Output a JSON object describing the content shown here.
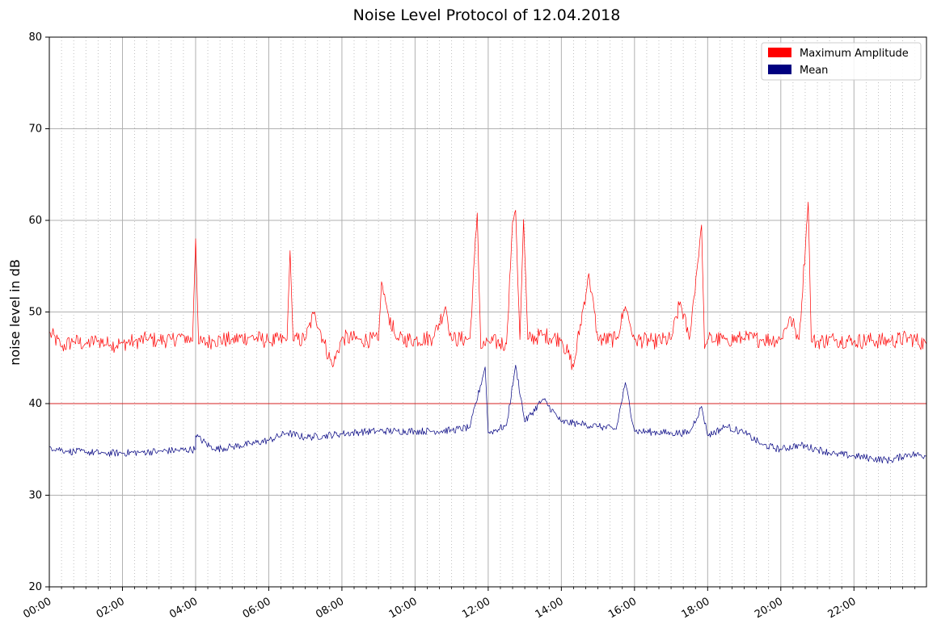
{
  "chart_data": {
    "type": "line",
    "title": "Noise Level Protocol of 12.04.2018",
    "xlabel": "",
    "ylabel": "noise level in dB",
    "xlim": [
      "00:00",
      "23:59"
    ],
    "ylim": [
      20,
      80
    ],
    "x_ticks": [
      "00:00",
      "02:00",
      "04:00",
      "06:00",
      "08:00",
      "10:00",
      "12:00",
      "14:00",
      "16:00",
      "18:00",
      "20:00",
      "22:00"
    ],
    "y_ticks": [
      20,
      30,
      40,
      50,
      60,
      70,
      80
    ],
    "grid": {
      "major": true,
      "minor_x": "dotted"
    },
    "threshold": {
      "value": 40,
      "color": "#d62020"
    },
    "legend": {
      "placement": "top-right",
      "entries": [
        {
          "label": "Maximum Amplitude",
          "color": "#ff0000"
        },
        {
          "label": "Mean",
          "color": "#000080"
        }
      ]
    },
    "series": [
      {
        "name": "Maximum Amplitude",
        "color": "#ff0000",
        "points": [
          [
            "00:00",
            47.8
          ],
          [
            "00:20",
            46.2
          ],
          [
            "00:40",
            46.8
          ],
          [
            "01:00",
            46.5
          ],
          [
            "01:20",
            46.9
          ],
          [
            "01:40",
            46.4
          ],
          [
            "02:00",
            46.6
          ],
          [
            "02:20",
            46.8
          ],
          [
            "02:40",
            47.0
          ],
          [
            "03:00",
            46.9
          ],
          [
            "03:20",
            47.0
          ],
          [
            "03:40",
            47.4
          ],
          [
            "03:55",
            46.8
          ],
          [
            "04:00",
            58.0
          ],
          [
            "04:05",
            46.5
          ],
          [
            "04:30",
            46.9
          ],
          [
            "05:00",
            47.0
          ],
          [
            "05:30",
            47.3
          ],
          [
            "06:00",
            46.8
          ],
          [
            "06:30",
            47.0
          ],
          [
            "06:35",
            56.7
          ],
          [
            "06:40",
            46.9
          ],
          [
            "07:00",
            47.0
          ],
          [
            "07:15",
            50.0
          ],
          [
            "07:30",
            46.8
          ],
          [
            "07:45",
            44.0
          ],
          [
            "08:00",
            47.2
          ],
          [
            "08:30",
            47.0
          ],
          [
            "09:00",
            46.9
          ],
          [
            "09:05",
            53.3
          ],
          [
            "09:15",
            50.0
          ],
          [
            "09:30",
            47.0
          ],
          [
            "10:00",
            47.0
          ],
          [
            "10:30",
            47.2
          ],
          [
            "10:50",
            50.6
          ],
          [
            "11:00",
            47.0
          ],
          [
            "11:30",
            47.1
          ],
          [
            "11:42",
            60.8
          ],
          [
            "11:48",
            46.0
          ],
          [
            "12:00",
            46.8
          ],
          [
            "12:30",
            46.5
          ],
          [
            "12:40",
            59.8
          ],
          [
            "12:45",
            61.1
          ],
          [
            "12:52",
            47.0
          ],
          [
            "12:58",
            60.1
          ],
          [
            "13:05",
            47.0
          ],
          [
            "13:30",
            47.5
          ],
          [
            "14:00",
            47.0
          ],
          [
            "14:20",
            44.0
          ],
          [
            "14:45",
            54.2
          ],
          [
            "15:00",
            47.0
          ],
          [
            "15:30",
            47.0
          ],
          [
            "15:45",
            50.6
          ],
          [
            "16:00",
            47.0
          ],
          [
            "16:30",
            46.8
          ],
          [
            "17:00",
            47.0
          ],
          [
            "17:15",
            51.1
          ],
          [
            "17:30",
            47.0
          ],
          [
            "17:50",
            59.5
          ],
          [
            "17:55",
            46.0
          ],
          [
            "18:00",
            47.0
          ],
          [
            "18:30",
            47.0
          ],
          [
            "19:00",
            47.1
          ],
          [
            "19:30",
            47.0
          ],
          [
            "20:00",
            47.0
          ],
          [
            "20:15",
            49.5
          ],
          [
            "20:30",
            47.0
          ],
          [
            "20:45",
            62.0
          ],
          [
            "20:50",
            46.8
          ],
          [
            "21:00",
            46.8
          ],
          [
            "21:30",
            47.0
          ],
          [
            "22:00",
            46.8
          ],
          [
            "22:30",
            46.9
          ],
          [
            "23:00",
            46.8
          ],
          [
            "23:30",
            47.2
          ],
          [
            "23:59",
            46.5
          ]
        ]
      },
      {
        "name": "Mean",
        "color": "#000080",
        "points": [
          [
            "00:00",
            35.3
          ],
          [
            "00:30",
            34.8
          ],
          [
            "01:00",
            34.7
          ],
          [
            "01:30",
            34.6
          ],
          [
            "02:00",
            34.6
          ],
          [
            "02:30",
            34.7
          ],
          [
            "03:00",
            34.8
          ],
          [
            "03:30",
            34.9
          ],
          [
            "04:00",
            35.0
          ],
          [
            "04:00",
            36.5
          ],
          [
            "04:30",
            35.0
          ],
          [
            "05:00",
            35.3
          ],
          [
            "05:30",
            35.6
          ],
          [
            "06:00",
            36.0
          ],
          [
            "06:30",
            36.8
          ],
          [
            "07:00",
            36.3
          ],
          [
            "07:30",
            36.5
          ],
          [
            "08:00",
            36.7
          ],
          [
            "08:30",
            36.9
          ],
          [
            "09:00",
            37.0
          ],
          [
            "09:30",
            37.0
          ],
          [
            "10:00",
            37.0
          ],
          [
            "10:30",
            37.0
          ],
          [
            "11:00",
            37.1
          ],
          [
            "11:30",
            37.4
          ],
          [
            "11:55",
            44.0
          ],
          [
            "12:00",
            36.8
          ],
          [
            "12:30",
            37.6
          ],
          [
            "12:45",
            44.2
          ],
          [
            "13:00",
            38.0
          ],
          [
            "13:30",
            40.5
          ],
          [
            "14:00",
            38.0
          ],
          [
            "14:30",
            37.8
          ],
          [
            "15:00",
            37.5
          ],
          [
            "15:30",
            37.2
          ],
          [
            "15:45",
            42.3
          ],
          [
            "16:00",
            37.0
          ],
          [
            "16:30",
            36.9
          ],
          [
            "17:00",
            36.8
          ],
          [
            "17:30",
            36.8
          ],
          [
            "17:50",
            39.7
          ],
          [
            "18:00",
            36.5
          ],
          [
            "18:30",
            37.5
          ],
          [
            "19:00",
            36.8
          ],
          [
            "19:30",
            35.5
          ],
          [
            "20:00",
            35.0
          ],
          [
            "20:30",
            35.5
          ],
          [
            "21:00",
            35.0
          ],
          [
            "21:30",
            34.5
          ],
          [
            "22:00",
            34.3
          ],
          [
            "22:30",
            34.0
          ],
          [
            "23:00",
            33.8
          ],
          [
            "23:30",
            34.5
          ],
          [
            "23:59",
            34.3
          ]
        ]
      }
    ]
  }
}
